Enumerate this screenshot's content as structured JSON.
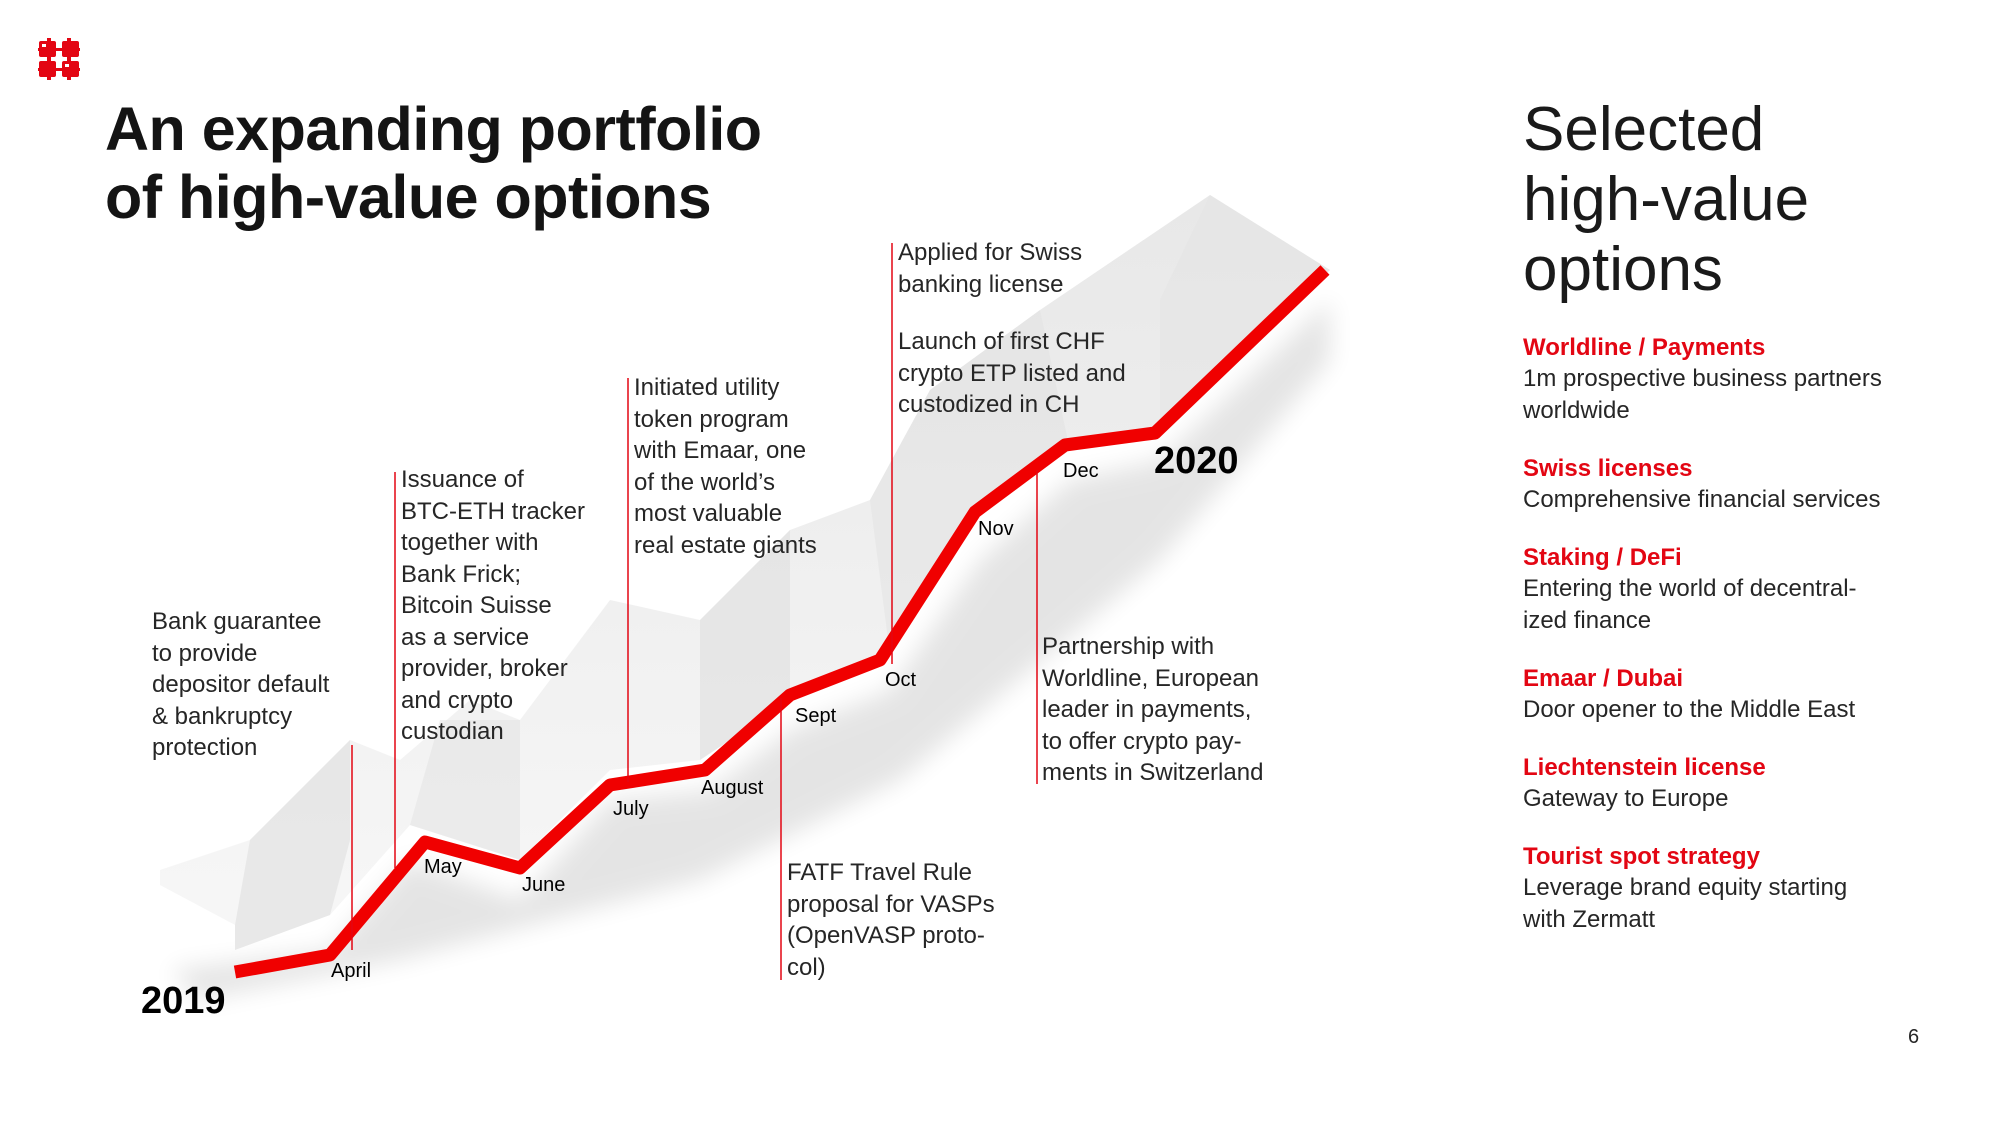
{
  "slide": {
    "title_lines": [
      "An expanding portfolio",
      "of high-value options"
    ],
    "page_number": "6"
  },
  "colors": {
    "accent": "#e30613",
    "text": "#1a1a1a",
    "ribbon": "#ececec"
  },
  "timeline": {
    "start_year": "2019",
    "end_year": "2020",
    "months": [
      "April",
      "May",
      "June",
      "July",
      "August",
      "Sept",
      "Oct",
      "Nov",
      "Dec"
    ],
    "events": [
      {
        "lines": [
          "Bank guarantee",
          "to provide",
          "depositor default",
          "& bankruptcy",
          "protection"
        ]
      },
      {
        "lines": [
          "Issuance of",
          "BTC-ETH tracker",
          "together with",
          "Bank Frick;",
          "Bitcoin Suisse",
          "as a service",
          "provider, broker",
          "and crypto",
          "custodian"
        ]
      },
      {
        "lines": [
          "Initiated utility",
          "token program",
          "with Emaar, one",
          "of the world’s",
          "most valuable",
          "real estate giants"
        ]
      },
      {
        "lines": [
          "FATF Travel Rule",
          "proposal for VASPs",
          "(OpenVASP proto-",
          "col)"
        ]
      },
      {
        "lines": [
          "Applied for Swiss",
          "banking license"
        ]
      },
      {
        "lines": [
          "Launch of first CHF",
          "crypto ETP listed and",
          "custodized in CH"
        ]
      },
      {
        "lines": [
          "Partnership with",
          "Worldline, European",
          "leader in payments,",
          "to offer crypto pay-",
          "ments in Switzerland"
        ]
      }
    ]
  },
  "sidebar": {
    "title_lines": [
      "Selected",
      "high-value",
      "options"
    ],
    "options": [
      {
        "heading": "Worldline / Payments",
        "desc_lines": [
          "1m prospective business partners",
          "worldwide"
        ]
      },
      {
        "heading": "Swiss licenses",
        "desc_lines": [
          "Comprehensive financial services"
        ]
      },
      {
        "heading": "Staking / DeFi",
        "desc_lines": [
          "Entering the world of decentral-",
          "ized finance"
        ]
      },
      {
        "heading": "Emaar / Dubai",
        "desc_lines": [
          "Door opener to the Middle East"
        ]
      },
      {
        "heading": "Liechtenstein license",
        "desc_lines": [
          "Gateway to Europe"
        ]
      },
      {
        "heading": "Tourist spot strategy",
        "desc_lines": [
          "Leverage brand equity starting",
          "with Zermatt"
        ]
      }
    ]
  }
}
